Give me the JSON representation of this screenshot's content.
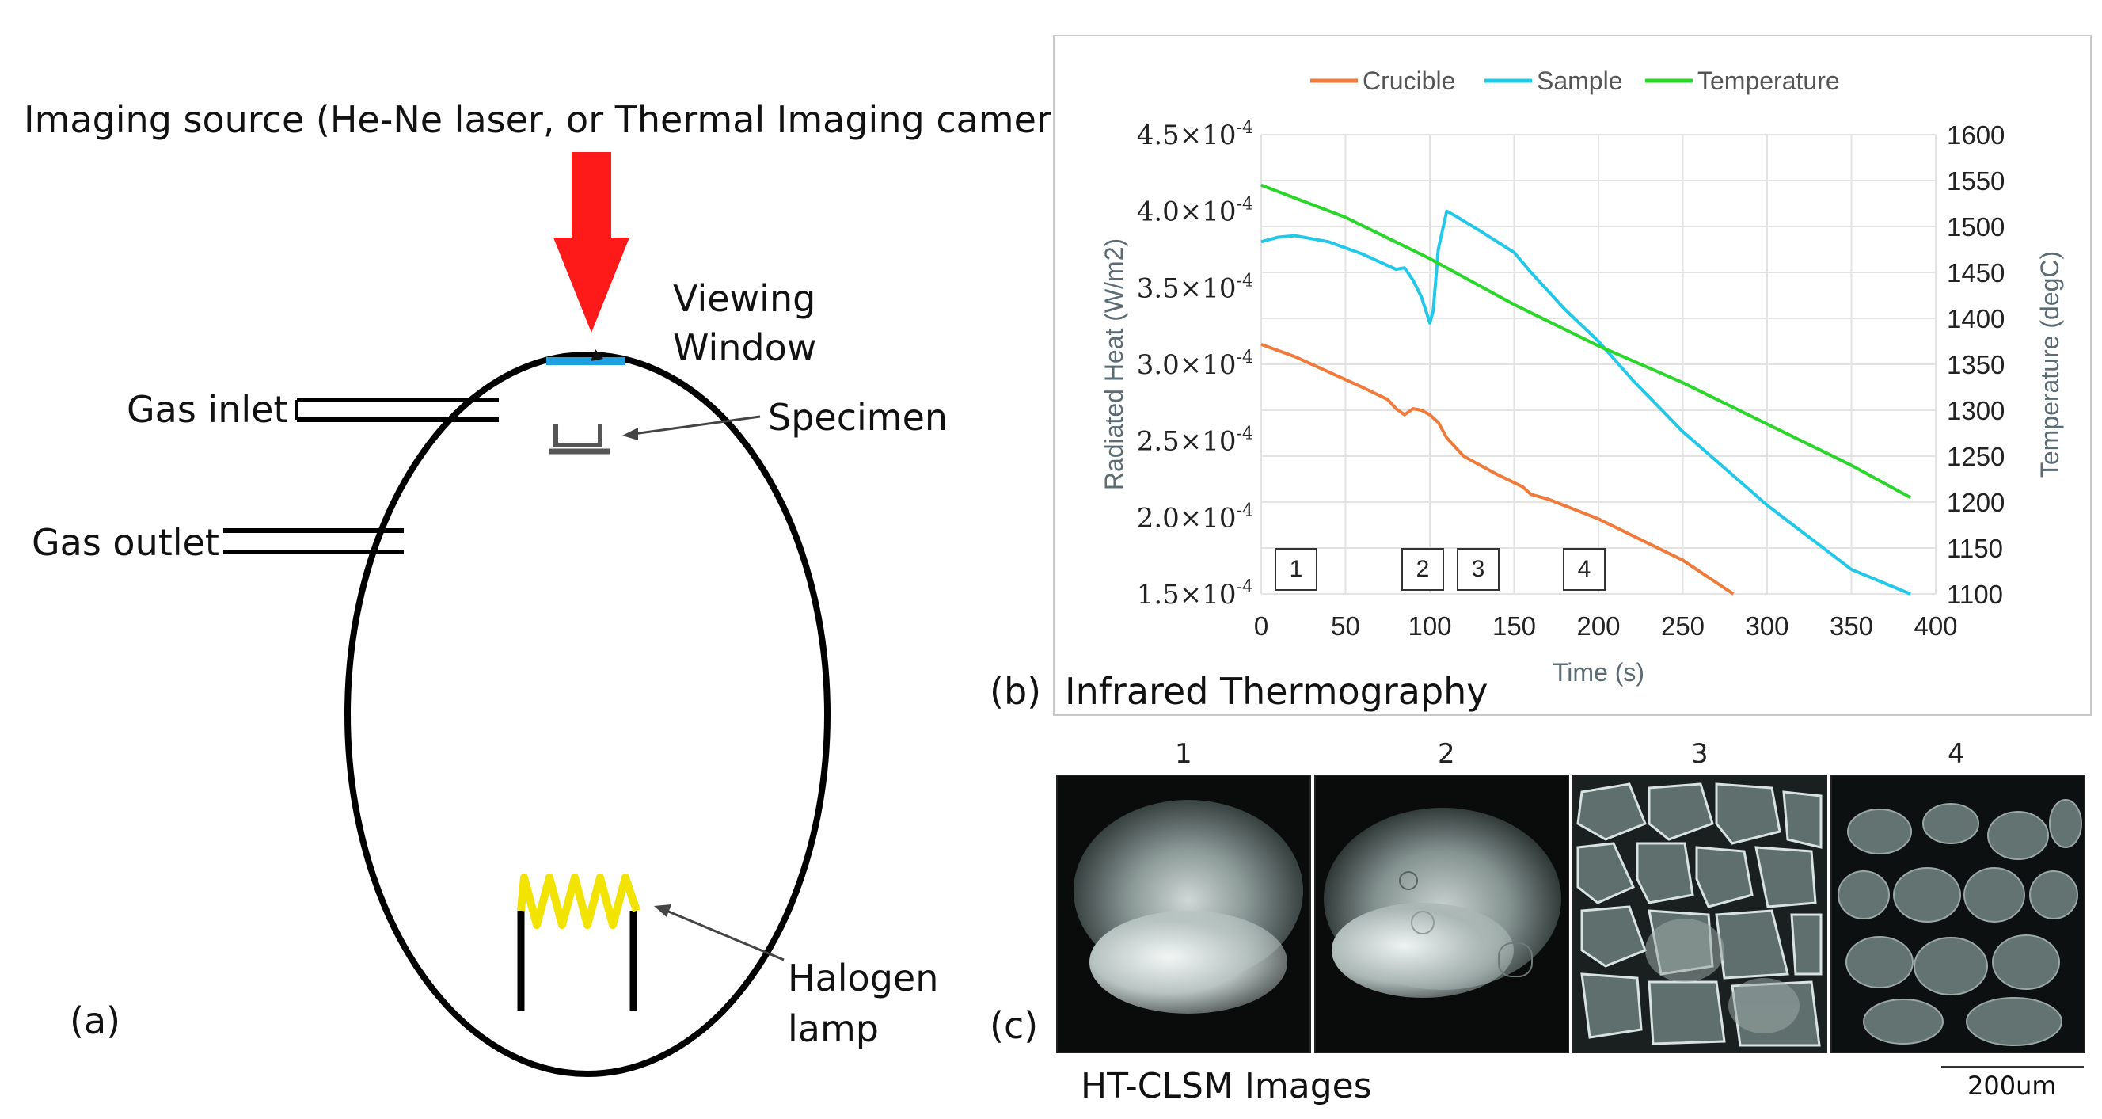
{
  "panel_a": {
    "imaging_source": "Imaging source (He-Ne laser, or Thermal Imaging camera)",
    "viewing_window_line1": "Viewing",
    "viewing_window_line2": "Window",
    "gas_inlet": "Gas inlet",
    "specimen": "Specimen",
    "gas_outlet": "Gas outlet",
    "halogen_line1": "Halogen",
    "halogen_line2": "lamp",
    "panel_label": "(a)"
  },
  "panel_b": {
    "panel_label": "(b)",
    "caption": "Infrared Thermography",
    "markers": [
      "1",
      "2",
      "3",
      "4"
    ]
  },
  "panel_c": {
    "panel_label": "(c)",
    "caption": "HT-CLSM Images",
    "image_numbers": [
      "1",
      "2",
      "3",
      "4"
    ],
    "scale_bar": "200um"
  },
  "colors": {
    "arrow": "#ff1a1a",
    "window": "#1fa0e0",
    "lamp": "#f2e400",
    "crucible": "#f07a3a",
    "sample": "#22c8e8",
    "temperature": "#2ad62a"
  },
  "chart_data": {
    "type": "line",
    "xlabel": "Time (s)",
    "ylabel": "Radiated Heat (W/m2)",
    "y2label": "Temperature (degC)",
    "xlim": [
      0,
      400
    ],
    "ylim": [
      0.00015,
      0.00045
    ],
    "y2lim": [
      1100,
      1600
    ],
    "x_ticks": [
      "0",
      "50",
      "100",
      "150",
      "200",
      "250",
      "300",
      "350",
      "400"
    ],
    "y_ticks": [
      "1.5×10",
      "2.0×10",
      "2.5×10",
      "3.0×10",
      "3.5×10",
      "4.0×10",
      "4.5×10"
    ],
    "y_tick_exponent": "-4",
    "y2_ticks": [
      "1100",
      "1150",
      "1200",
      "1250",
      "1300",
      "1350",
      "1400",
      "1450",
      "1500",
      "1550",
      "1600"
    ],
    "legend_position": "top",
    "grid": true,
    "series": [
      {
        "name": "Crucible",
        "axis": "left",
        "x": [
          0,
          20,
          40,
          60,
          75,
          80,
          85,
          90,
          95,
          100,
          105,
          110,
          120,
          140,
          155,
          160,
          170,
          200,
          250,
          280
        ],
        "y": [
          0.000313,
          0.000305,
          0.000295,
          0.000285,
          0.000277,
          0.000271,
          0.000267,
          0.000271,
          0.00027,
          0.000267,
          0.000262,
          0.000252,
          0.00024,
          0.000228,
          0.00022,
          0.000215,
          0.000212,
          0.000199,
          0.000172,
          0.00015
        ]
      },
      {
        "name": "Sample",
        "axis": "left",
        "x": [
          0,
          10,
          20,
          40,
          60,
          70,
          80,
          85,
          90,
          95,
          100,
          102,
          105,
          110,
          115,
          130,
          150,
          160,
          180,
          200,
          220,
          250,
          300,
          350,
          385
        ],
        "y": [
          0.00038,
          0.000383,
          0.000384,
          0.00038,
          0.000372,
          0.000367,
          0.000362,
          0.000363,
          0.000355,
          0.000344,
          0.000327,
          0.000335,
          0.000375,
          0.0004,
          0.000397,
          0.000387,
          0.000373,
          0.00036,
          0.000336,
          0.000315,
          0.00029,
          0.000256,
          0.000208,
          0.000166,
          0.00015
        ]
      },
      {
        "name": "Temperature",
        "axis": "right",
        "x": [
          0,
          50,
          100,
          150,
          200,
          250,
          300,
          350,
          385
        ],
        "y": [
          1545,
          1510,
          1465,
          1415,
          1370,
          1330,
          1285,
          1240,
          1205
        ]
      }
    ]
  }
}
